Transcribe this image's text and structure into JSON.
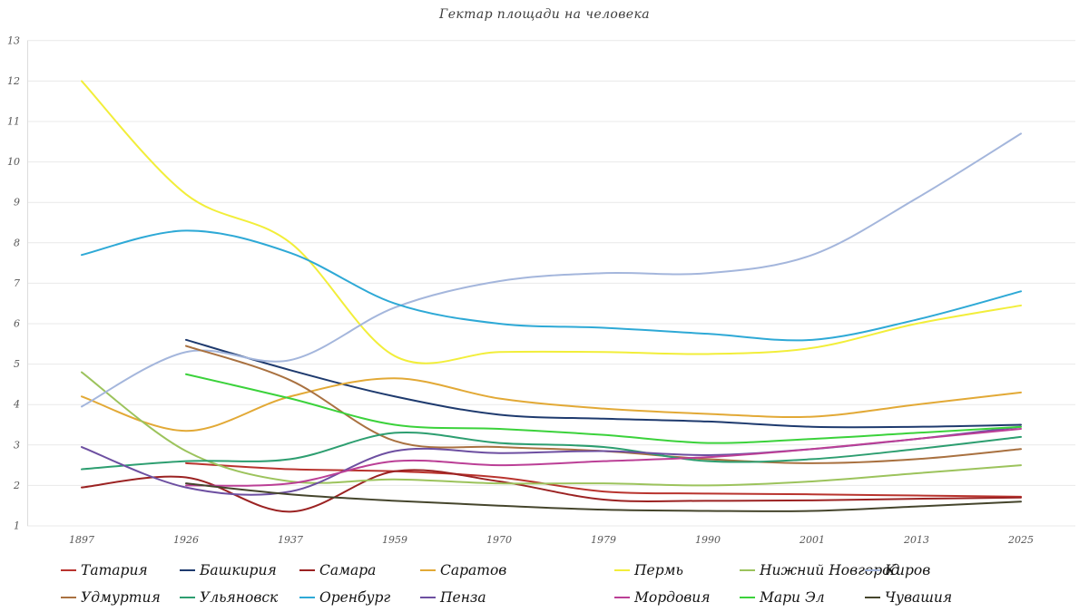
{
  "page": {
    "title": "Гектар площади на человека"
  },
  "chart_data": {
    "type": "line",
    "title": "Гектар площади на человека",
    "xlabel": "",
    "ylabel": "",
    "x_categories": [
      "1897",
      "1926",
      "1937",
      "1959",
      "1970",
      "1979",
      "1990",
      "2001",
      "2013",
      "2025"
    ],
    "ylim": [
      1,
      13
    ],
    "yticks": [
      1,
      2,
      3,
      4,
      5,
      6,
      7,
      8,
      9,
      10,
      11,
      12,
      13
    ],
    "grid": true,
    "legend_position": "bottom",
    "series": [
      {
        "name": "Татария",
        "color": "#b9342e",
        "values": [
          null,
          2.55,
          2.4,
          2.35,
          2.2,
          1.85,
          1.8,
          1.78,
          1.75,
          1.72
        ]
      },
      {
        "name": "Башкирия",
        "color": "#1e3a6e",
        "values": [
          null,
          5.6,
          4.85,
          4.2,
          3.75,
          3.65,
          3.58,
          3.45,
          3.45,
          3.5
        ]
      },
      {
        "name": "Самара",
        "color": "#9b2222",
        "values": [
          1.95,
          2.2,
          1.35,
          2.35,
          2.1,
          1.65,
          1.62,
          1.63,
          1.67,
          1.7
        ]
      },
      {
        "name": "Саратов",
        "color": "#e2a936",
        "values": [
          4.2,
          3.35,
          4.2,
          4.65,
          4.15,
          3.9,
          3.77,
          3.7,
          4.0,
          4.3
        ]
      },
      {
        "name": "Пермь",
        "color": "#f2ee3a",
        "values": [
          12.0,
          9.2,
          8.0,
          5.2,
          5.3,
          5.3,
          5.25,
          5.4,
          6.0,
          6.45
        ]
      },
      {
        "name": "Нижний Новгород",
        "color": "#9cc35c",
        "values": [
          4.8,
          2.85,
          2.1,
          2.15,
          2.05,
          2.05,
          2.0,
          2.1,
          2.3,
          2.5
        ]
      },
      {
        "name": "Киров",
        "color": "#a4b6dc",
        "values": [
          3.95,
          5.3,
          5.1,
          6.4,
          7.05,
          7.25,
          7.25,
          7.7,
          9.1,
          10.7
        ]
      },
      {
        "name": "Удмуртия",
        "color": "#a97140",
        "values": [
          null,
          5.45,
          4.6,
          3.1,
          2.95,
          2.85,
          2.65,
          2.55,
          2.65,
          2.9
        ]
      },
      {
        "name": "Ульяновск",
        "color": "#2d9e70",
        "values": [
          2.4,
          2.6,
          2.65,
          3.3,
          3.05,
          2.95,
          2.6,
          2.65,
          2.9,
          3.2
        ]
      },
      {
        "name": "Оренбург",
        "color": "#2ea9d6",
        "values": [
          7.7,
          8.3,
          7.75,
          6.5,
          6.0,
          5.9,
          5.75,
          5.6,
          6.1,
          6.8
        ]
      },
      {
        "name": "Пенза",
        "color": "#6d4fa1",
        "values": [
          2.95,
          1.95,
          1.85,
          2.85,
          2.8,
          2.85,
          2.75,
          2.9,
          3.15,
          3.45
        ]
      },
      {
        "name": "Мордовия",
        "color": "#bb3f96",
        "values": [
          null,
          2.0,
          2.05,
          2.6,
          2.5,
          2.6,
          2.7,
          2.9,
          3.15,
          3.4
        ]
      },
      {
        "name": "Мари Эл",
        "color": "#3bd23b",
        "values": [
          null,
          4.75,
          4.15,
          3.5,
          3.4,
          3.25,
          3.05,
          3.15,
          3.3,
          3.45
        ]
      },
      {
        "name": "Чувашия",
        "color": "#45452c",
        "values": [
          null,
          2.05,
          1.78,
          1.62,
          1.5,
          1.4,
          1.37,
          1.37,
          1.48,
          1.6
        ]
      }
    ]
  }
}
